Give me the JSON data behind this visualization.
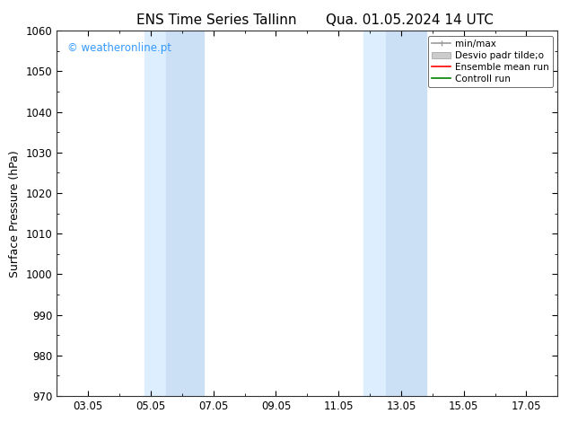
{
  "title": "ENS Time Series Tallinn",
  "title2": "Qua. 01.05.2024 14 UTC",
  "ylabel": "Surface Pressure (hPa)",
  "ylim": [
    970,
    1060
  ],
  "yticks": [
    970,
    980,
    990,
    1000,
    1010,
    1020,
    1030,
    1040,
    1050,
    1060
  ],
  "xtick_labels": [
    "03.05",
    "05.05",
    "07.05",
    "09.05",
    "11.05",
    "13.05",
    "15.05",
    "17.05"
  ],
  "xtick_positions": [
    2,
    4,
    6,
    8,
    10,
    12,
    14,
    16
  ],
  "xmin": 1,
  "xmax": 17,
  "shaded_regions": [
    {
      "xmin": 3.8,
      "xmax": 4.5,
      "color": "#ddeeff"
    },
    {
      "xmin": 4.5,
      "xmax": 5.7,
      "color": "#cce0f5"
    },
    {
      "xmin": 10.8,
      "xmax": 11.5,
      "color": "#ddeeff"
    },
    {
      "xmin": 11.5,
      "xmax": 12.8,
      "color": "#cce0f5"
    }
  ],
  "watermark_text": "© weatheronline.pt",
  "watermark_color": "#3399ff",
  "legend_labels": [
    "min/max",
    "Desvio padr tilde;o",
    "Ensemble mean run",
    "Controll run"
  ],
  "legend_colors_line": [
    "#999999",
    "#cccccc",
    "#ff0000",
    "#008000"
  ],
  "bg_color": "#ffffff",
  "title_fontsize": 11,
  "axis_label_fontsize": 9,
  "tick_fontsize": 8.5
}
